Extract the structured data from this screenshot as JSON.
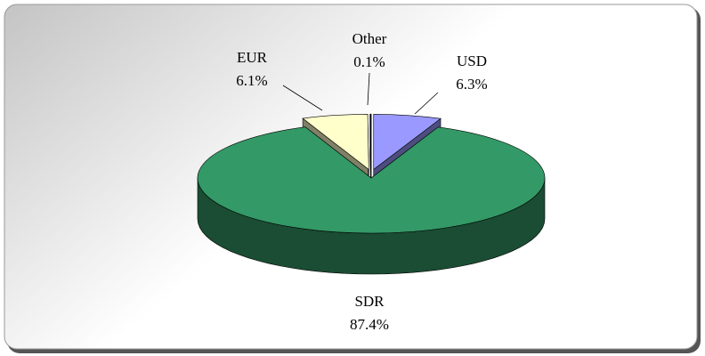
{
  "chart_data": {
    "type": "pie3d",
    "categories": [
      "USD",
      "SDR",
      "EUR",
      "Other"
    ],
    "values": [
      6.3,
      87.4,
      6.1,
      0.1
    ],
    "value_labels": [
      "6.3%",
      "87.4%",
      "6.1%",
      "0.1%"
    ],
    "colors": [
      "#9999ff",
      "#339966",
      "#ffffcc",
      "#000000"
    ]
  }
}
